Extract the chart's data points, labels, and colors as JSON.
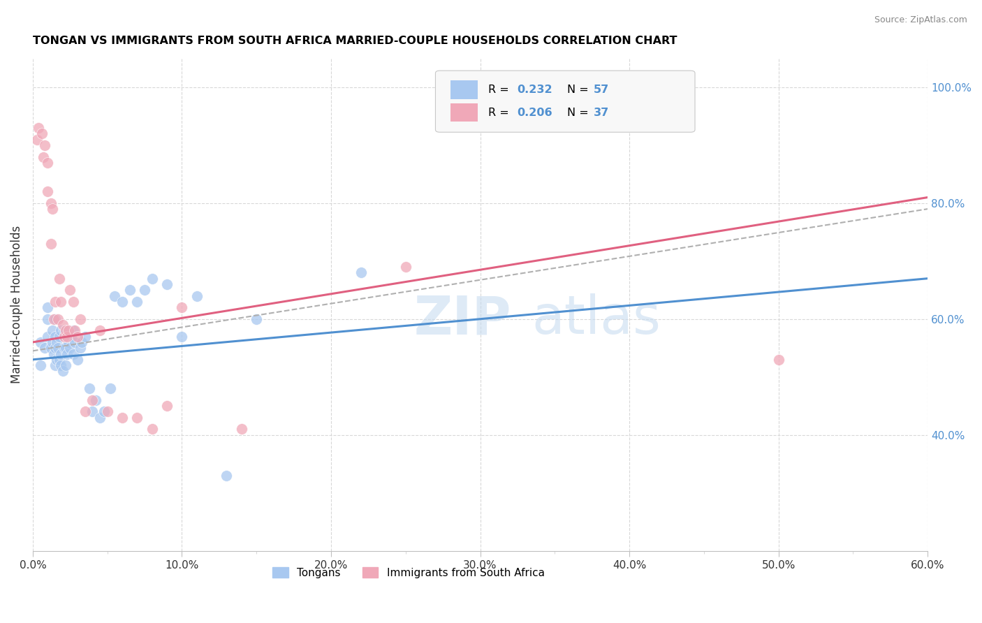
{
  "title": "TONGAN VS IMMIGRANTS FROM SOUTH AFRICA MARRIED-COUPLE HOUSEHOLDS CORRELATION CHART",
  "source": "Source: ZipAtlas.com",
  "ylabel": "Married-couple Households",
  "xlim": [
    0.0,
    0.6
  ],
  "ylim": [
    0.2,
    1.05
  ],
  "xtick_labels": [
    "0.0%",
    "",
    "",
    "",
    "",
    "",
    "",
    "",
    "10.0%",
    "",
    "",
    "",
    "",
    "",
    "",
    "",
    "20.0%",
    "",
    "",
    "",
    "30.0%",
    "",
    "",
    "",
    "",
    "40.0%",
    "",
    "",
    "",
    "",
    "50.0%",
    "",
    "",
    "",
    "",
    "60.0%"
  ],
  "xtick_values": [
    0.0,
    0.02,
    0.04,
    0.06,
    0.08,
    0.1,
    0.12,
    0.14,
    0.16,
    0.18,
    0.2,
    0.22,
    0.24,
    0.26,
    0.28,
    0.3,
    0.32,
    0.34,
    0.36,
    0.38,
    0.4,
    0.42,
    0.44,
    0.46,
    0.48,
    0.5,
    0.52,
    0.54,
    0.56,
    0.58,
    0.6
  ],
  "xtick_major_labels": [
    "0.0%",
    "10.0%",
    "20.0%",
    "30.0%",
    "40.0%",
    "50.0%",
    "60.0%"
  ],
  "xtick_major_values": [
    0.0,
    0.1,
    0.2,
    0.3,
    0.4,
    0.5,
    0.6
  ],
  "ytick_labels_right": [
    "40.0%",
    "60.0%",
    "80.0%",
    "100.0%"
  ],
  "ytick_values_right": [
    0.4,
    0.6,
    0.8,
    1.0
  ],
  "blue_color": "#A8C8F0",
  "pink_color": "#F0A8B8",
  "blue_line_color": "#5090D0",
  "pink_line_color": "#E06080",
  "dashed_line_color": "#B0B0B0",
  "right_tick_color": "#5090D0",
  "grid_color": "#D8D8D8",
  "tongans_x": [
    0.005,
    0.005,
    0.008,
    0.01,
    0.01,
    0.01,
    0.012,
    0.013,
    0.013,
    0.014,
    0.015,
    0.015,
    0.015,
    0.015,
    0.016,
    0.016,
    0.017,
    0.018,
    0.018,
    0.019,
    0.019,
    0.019,
    0.02,
    0.021,
    0.021,
    0.022,
    0.022,
    0.022,
    0.023,
    0.024,
    0.025,
    0.026,
    0.027,
    0.027,
    0.028,
    0.03,
    0.032,
    0.033,
    0.035,
    0.038,
    0.04,
    0.042,
    0.045,
    0.048,
    0.052,
    0.055,
    0.06,
    0.065,
    0.07,
    0.075,
    0.08,
    0.09,
    0.1,
    0.11,
    0.13,
    0.15,
    0.22
  ],
  "tongans_y": [
    0.52,
    0.56,
    0.55,
    0.6,
    0.57,
    0.62,
    0.55,
    0.56,
    0.58,
    0.54,
    0.52,
    0.55,
    0.57,
    0.6,
    0.53,
    0.56,
    0.55,
    0.53,
    0.57,
    0.52,
    0.54,
    0.58,
    0.51,
    0.55,
    0.58,
    0.52,
    0.55,
    0.58,
    0.54,
    0.56,
    0.55,
    0.57,
    0.54,
    0.58,
    0.56,
    0.53,
    0.55,
    0.56,
    0.57,
    0.48,
    0.44,
    0.46,
    0.43,
    0.44,
    0.48,
    0.64,
    0.63,
    0.65,
    0.63,
    0.65,
    0.67,
    0.66,
    0.57,
    0.64,
    0.33,
    0.6,
    0.68
  ],
  "sa_x": [
    0.003,
    0.004,
    0.006,
    0.007,
    0.008,
    0.01,
    0.01,
    0.012,
    0.012,
    0.013,
    0.014,
    0.015,
    0.017,
    0.018,
    0.019,
    0.02,
    0.021,
    0.022,
    0.023,
    0.024,
    0.025,
    0.027,
    0.028,
    0.03,
    0.032,
    0.035,
    0.04,
    0.045,
    0.05,
    0.06,
    0.07,
    0.08,
    0.09,
    0.1,
    0.14,
    0.25,
    0.5
  ],
  "sa_y": [
    0.91,
    0.93,
    0.92,
    0.88,
    0.9,
    0.87,
    0.82,
    0.8,
    0.73,
    0.79,
    0.6,
    0.63,
    0.6,
    0.67,
    0.63,
    0.59,
    0.57,
    0.58,
    0.57,
    0.58,
    0.65,
    0.63,
    0.58,
    0.57,
    0.6,
    0.44,
    0.46,
    0.58,
    0.44,
    0.43,
    0.43,
    0.41,
    0.45,
    0.62,
    0.41,
    0.69,
    0.53
  ],
  "tongans_trend_x": [
    0.0,
    0.6
  ],
  "tongans_trend_y": [
    0.53,
    0.67
  ],
  "sa_trend_x": [
    0.0,
    0.6
  ],
  "sa_trend_y": [
    0.56,
    0.81
  ],
  "dashed_trend_x": [
    0.0,
    0.6
  ],
  "dashed_trend_y": [
    0.545,
    0.79
  ]
}
